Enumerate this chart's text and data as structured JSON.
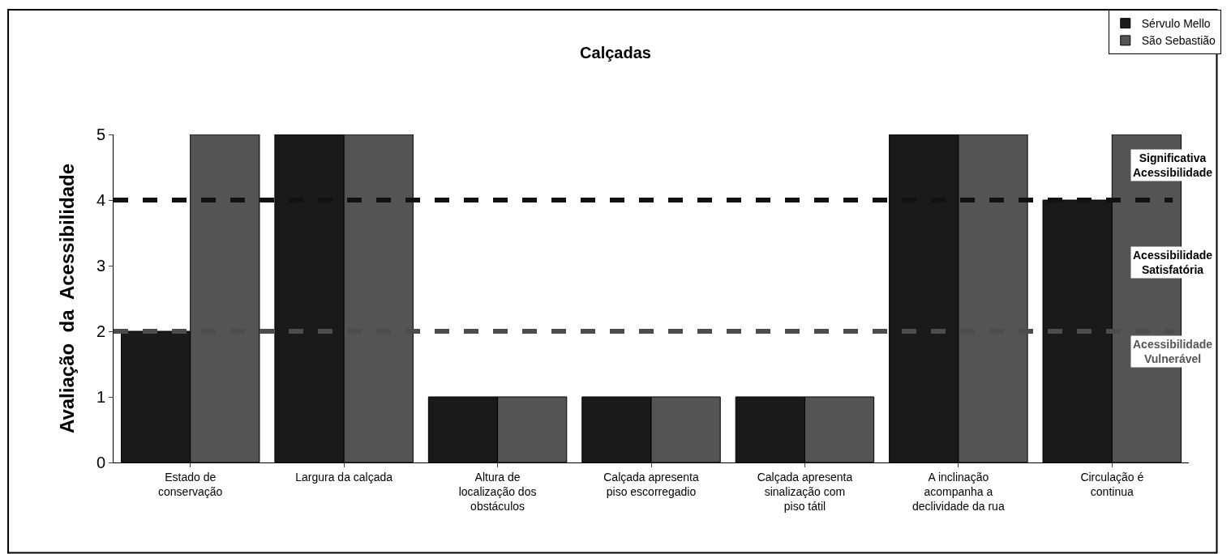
{
  "chart_data": {
    "type": "bar",
    "title": "Calçadas",
    "ylabel": "Avaliação  da  Acessibilidade",
    "categories": [
      "Estado de\nconservação",
      "Largura da calçada",
      "Altura de\nlocalização dos\nobstáculos",
      "Calçada apresenta\npiso escorregadio",
      "Calçada apresenta\nsinalização com\npiso tátil",
      "A inclinação\nacompanha a\ndeclividade da rua",
      "Circulação é\ncontinua"
    ],
    "series": [
      {
        "name": "Sérvulo Mello",
        "color": "#1a1a1a",
        "values": [
          2,
          5,
          1,
          1,
          1,
          5,
          4
        ]
      },
      {
        "name": "São Sebastião",
        "color": "#545454",
        "values": [
          5,
          5,
          1,
          1,
          1,
          5,
          5
        ]
      }
    ],
    "ylim": [
      0,
      5
    ],
    "yticks": [
      0,
      1,
      2,
      3,
      4,
      5
    ],
    "legend": "top right",
    "ref_lines": [
      {
        "axis": "y",
        "value": 4,
        "color": "#111111",
        "line_style": "dashed"
      },
      {
        "axis": "y",
        "value": 2,
        "color": "#4d4d4d",
        "line_style": "dashed"
      }
    ],
    "annotations": [
      "Significativa\nAcessibilidade",
      "Acessibilidade\nSatisfatória",
      "Acessibilidade\nVulnerável"
    ]
  }
}
